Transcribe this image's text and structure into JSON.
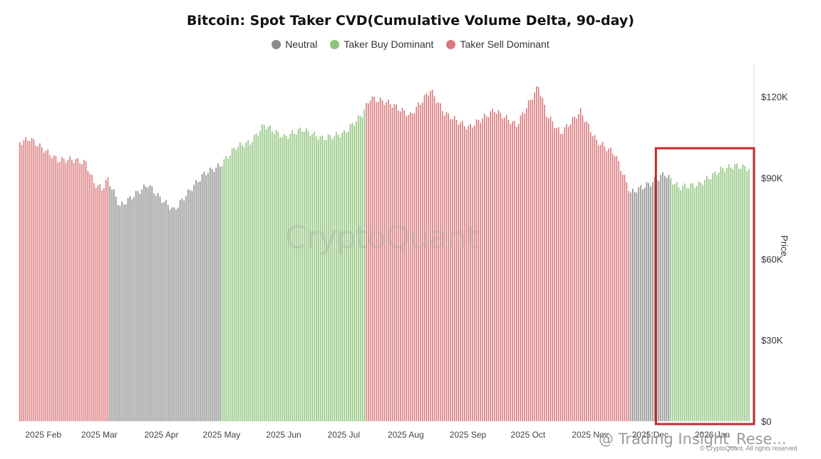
{
  "chart_data": {
    "type": "bar",
    "title": "Bitcoin: Spot Taker CVD(Cumulative Volume Delta, 90-day)",
    "legend": [
      {
        "label": "Neutral",
        "color": "#8a8a8a"
      },
      {
        "label": "Taker Buy Dominant",
        "color": "#8dc47a"
      },
      {
        "label": "Taker Sell Dominant",
        "color": "#d9777a"
      }
    ],
    "ylabel": "Price",
    "ylim": [
      0,
      132000
    ],
    "yticks": [
      "$0",
      "$30K",
      "$60K",
      "$90K",
      "$120K"
    ],
    "ytick_values": [
      0,
      30000,
      60000,
      90000,
      120000
    ],
    "x_ticks": [
      "2025 Feb",
      "2025 Mar",
      "2025 Apr",
      "2025 May",
      "2025 Jun",
      "2025 Jul",
      "2025 Aug",
      "2025 Sep",
      "2025 Oct",
      "2025 Nov",
      "2025 Dec",
      "2026 Jan"
    ],
    "x_tick_dates": [
      "2025-02-01",
      "2025-03-01",
      "2025-04-01",
      "2025-05-01",
      "2025-06-01",
      "2025-07-01",
      "2025-08-01",
      "2025-09-01",
      "2025-10-01",
      "2025-11-01",
      "2025-12-01",
      "2026-01-01"
    ],
    "x_range": [
      "2025-01-20",
      "2026-01-19"
    ],
    "legend_position": "top-center",
    "grid": false,
    "series": [
      {
        "name": "Taker Sell Dominant",
        "segments": [
          {
            "from": "2025-01-20",
            "to": "2025-03-05"
          },
          {
            "from": "2025-07-12",
            "to": "2025-11-20"
          }
        ]
      },
      {
        "name": "Neutral",
        "segments": [
          {
            "from": "2025-03-06",
            "to": "2025-04-30"
          },
          {
            "from": "2025-11-21",
            "to": "2025-12-10"
          }
        ]
      },
      {
        "name": "Taker Buy Dominant",
        "segments": [
          {
            "from": "2025-05-01",
            "to": "2025-07-11"
          },
          {
            "from": "2025-12-11",
            "to": "2026-01-19"
          }
        ]
      }
    ],
    "price_points": [
      [
        "2025-01-20",
        103000
      ],
      [
        "2025-01-25",
        104500
      ],
      [
        "2025-02-01",
        100500
      ],
      [
        "2025-02-08",
        96500
      ],
      [
        "2025-02-15",
        96800
      ],
      [
        "2025-02-22",
        95500
      ],
      [
        "2025-02-26",
        88000
      ],
      [
        "2025-03-02",
        86000
      ],
      [
        "2025-03-05",
        89500
      ],
      [
        "2025-03-11",
        79500
      ],
      [
        "2025-03-18",
        83500
      ],
      [
        "2025-03-25",
        87500
      ],
      [
        "2025-03-31",
        82500
      ],
      [
        "2025-04-07",
        78000
      ],
      [
        "2025-04-14",
        84500
      ],
      [
        "2025-04-22",
        91500
      ],
      [
        "2025-04-30",
        94500
      ],
      [
        "2025-05-08",
        101500
      ],
      [
        "2025-05-15",
        103000
      ],
      [
        "2025-05-22",
        109500
      ],
      [
        "2025-06-01",
        105000
      ],
      [
        "2025-06-10",
        108000
      ],
      [
        "2025-06-20",
        104500
      ],
      [
        "2025-07-01",
        106500
      ],
      [
        "2025-07-10",
        113500
      ],
      [
        "2025-07-14",
        119500
      ],
      [
        "2025-07-24",
        117500
      ],
      [
        "2025-08-03",
        113000
      ],
      [
        "2025-08-13",
        122500
      ],
      [
        "2025-08-20",
        114000
      ],
      [
        "2025-09-01",
        108500
      ],
      [
        "2025-09-14",
        115000
      ],
      [
        "2025-09-25",
        109500
      ],
      [
        "2025-10-06",
        124000
      ],
      [
        "2025-10-10",
        113500
      ],
      [
        "2025-10-17",
        106500
      ],
      [
        "2025-10-27",
        114500
      ],
      [
        "2025-11-04",
        103500
      ],
      [
        "2025-11-13",
        99000
      ],
      [
        "2025-11-21",
        84500
      ],
      [
        "2025-12-01",
        88000
      ],
      [
        "2025-12-08",
        91500
      ],
      [
        "2025-12-15",
        86500
      ],
      [
        "2025-12-25",
        87500
      ],
      [
        "2026-01-05",
        93000
      ],
      [
        "2026-01-12",
        94500
      ],
      [
        "2026-01-19",
        93500
      ]
    ],
    "annotations": [
      {
        "type": "highlight-box",
        "from": "2025-12-06",
        "to": "2026-01-19",
        "color": "#c62828"
      }
    ]
  },
  "watermark": "CryptoQuant",
  "credit": "@ Trading Insight_Rese...",
  "copyright": "© CryptoQuant. All rights reserved"
}
